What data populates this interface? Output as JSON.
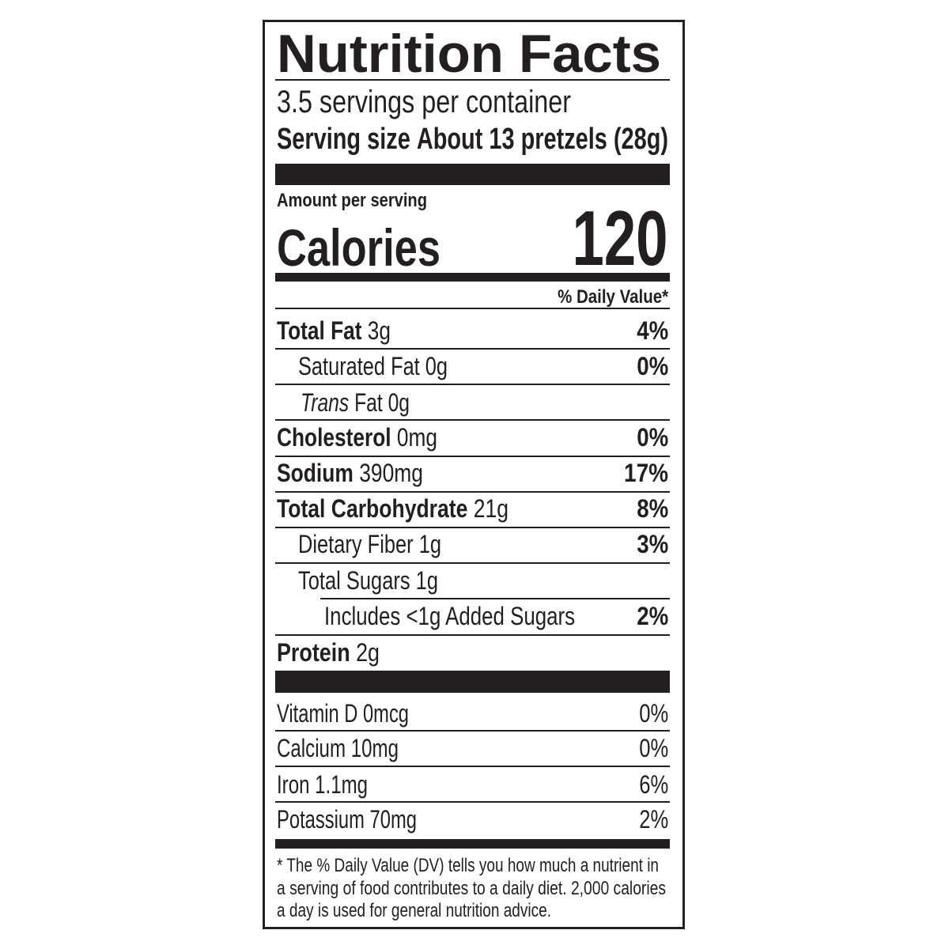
{
  "label": {
    "title": "Nutrition Facts",
    "servings_per_container": "3.5 servings per container",
    "serving_size_label": "Serving size",
    "serving_size_value": "About 13 pretzels (28g)",
    "amount_per_serving": "Amount per serving",
    "calories_label": "Calories",
    "calories_value": "120",
    "daily_value_header": "% Daily Value*",
    "nutrients": [
      {
        "name": "Total Fat",
        "amount": "3g",
        "dv": "4%"
      },
      {
        "name": "Saturated Fat",
        "amount": "0g",
        "dv": "0%"
      },
      {
        "name_italic": "Trans",
        "name": "Fat",
        "amount": "0g"
      },
      {
        "name": "Cholesterol",
        "amount": "0mg",
        "dv": "0%"
      },
      {
        "name": "Sodium",
        "amount": "390mg",
        "dv": "17%"
      },
      {
        "name": "Total Carbohydrate",
        "amount": "21g",
        "dv": "8%"
      },
      {
        "name": "Dietary Fiber",
        "amount": "1g",
        "dv": "3%"
      },
      {
        "name": "Total Sugars",
        "amount": "1g"
      },
      {
        "name": "Includes <1g Added Sugars",
        "dv": "2%"
      },
      {
        "name": "Protein",
        "amount": "2g"
      }
    ],
    "vitamins": [
      {
        "name": "Vitamin D",
        "amount": "0mcg",
        "dv": "0%"
      },
      {
        "name": "Calcium",
        "amount": "10mg",
        "dv": "0%"
      },
      {
        "name": "Iron",
        "amount": "1.1mg",
        "dv": "6%"
      },
      {
        "name": "Potassium",
        "amount": "70mg",
        "dv": "2%"
      }
    ],
    "footnote": [
      "* The % Daily Value (DV) tells you how much a nutrient in",
      "a serving of food contributes to a daily diet. 2,000 calories",
      "a day is used for general nutrition advice."
    ]
  }
}
